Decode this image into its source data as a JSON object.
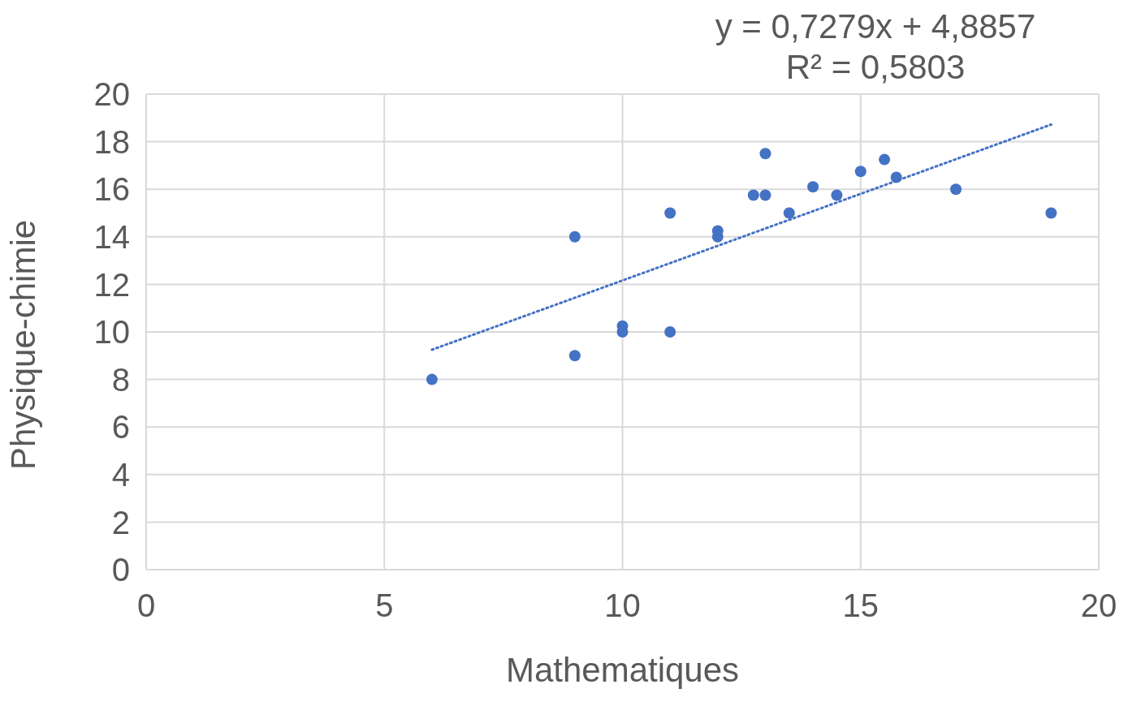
{
  "chart_data": {
    "type": "scatter",
    "xlabel": "Mathematiques",
    "ylabel": "Physique-chimie",
    "annotations": [
      "y = 0,7279x + 4,8857",
      "R² = 0,5803"
    ],
    "xlim": [
      0,
      20
    ],
    "xticks": [
      0,
      5,
      10,
      15,
      20
    ],
    "ylim": [
      0,
      20
    ],
    "yticks": [
      0,
      2,
      4,
      6,
      8,
      10,
      12,
      14,
      16,
      18,
      20
    ],
    "grid": true,
    "series": [
      {
        "color": "#4472c4",
        "marker": "circle",
        "x": [
          6,
          9,
          9,
          10,
          10,
          11,
          11,
          12,
          12,
          12.75,
          13,
          13,
          13.5,
          14,
          14.5,
          15,
          15.5,
          15.75,
          17,
          19
        ],
        "values": [
          8,
          14,
          9,
          10.25,
          10,
          15,
          10,
          14.25,
          14,
          15.75,
          17.5,
          15.75,
          15,
          16.1,
          15.75,
          16.75,
          17.25,
          16.5,
          16,
          15
        ]
      },
      {
        "type": "line",
        "color": "#4472c4",
        "marker": "none",
        "line_style": "dotted",
        "x": [
          6,
          19
        ],
        "values": [
          9.25,
          18.72
        ]
      }
    ]
  }
}
